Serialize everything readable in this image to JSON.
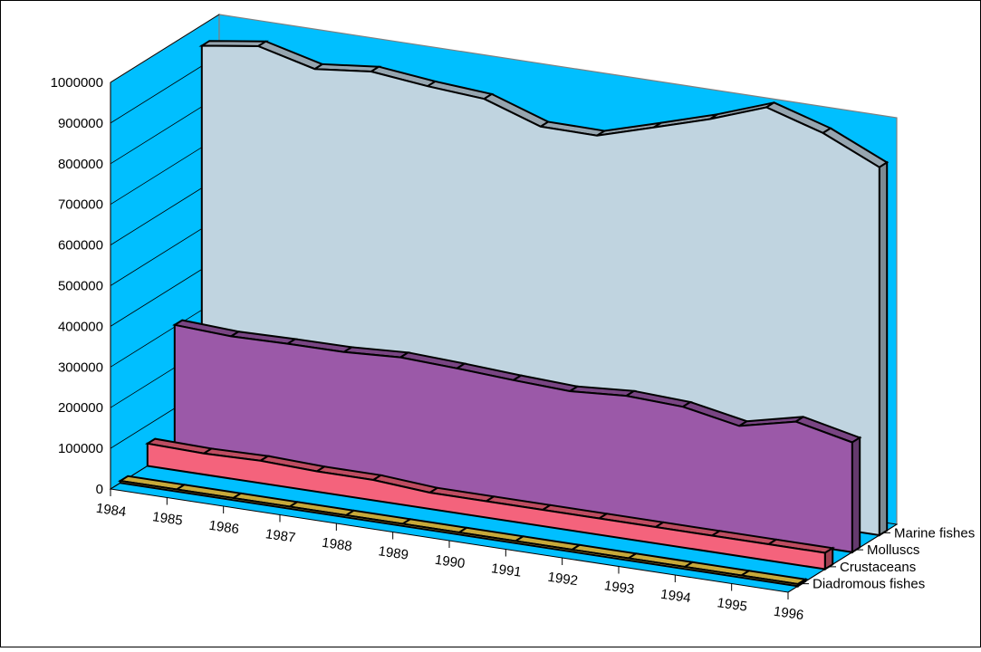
{
  "chart_data": {
    "type": "area",
    "title": "",
    "xlabel": "",
    "ylabel": "",
    "categories": [
      "1984",
      "1985",
      "1986",
      "1987",
      "1988",
      "1989",
      "1990",
      "1991",
      "1992",
      "1993",
      "1994",
      "1995",
      "1996"
    ],
    "y_ticks": [
      "0",
      "100000",
      "200000",
      "300000",
      "400000",
      "500000",
      "600000",
      "700000",
      "800000",
      "900000",
      "1000000"
    ],
    "ylim": [
      0,
      1000000
    ],
    "grid": false,
    "legend": "series labels along depth axis (right)",
    "series": [
      {
        "name": "Diadromous fishes",
        "color": "#FFD94A",
        "values": [
          5000,
          5000,
          5000,
          5000,
          5000,
          5000,
          5000,
          5000,
          5000,
          5000,
          5000,
          5000,
          5000
        ]
      },
      {
        "name": "Crustaceans",
        "color": "#F4637C",
        "values": [
          55000,
          52000,
          55000,
          50000,
          50000,
          40000,
          40000,
          40000,
          40000,
          40000,
          40000,
          40000,
          40000
        ]
      },
      {
        "name": "Molluscs",
        "color": "#9B59A8",
        "values": [
          305000,
          298000,
          301000,
          302000,
          310000,
          304000,
          296000,
          290000,
          300000,
          294000,
          268000,
          300000,
          270000
        ]
      },
      {
        "name": "Marine fishes",
        "color": "#C0D4E0",
        "values": [
          950000,
          970000,
          935000,
          950000,
          935000,
          925000,
          878000,
          877000,
          918000,
          960000,
          1010000,
          968000,
          905000
        ]
      }
    ],
    "colors": {
      "walls": "#00BFFF",
      "wall_edge": "#808080"
    }
  }
}
